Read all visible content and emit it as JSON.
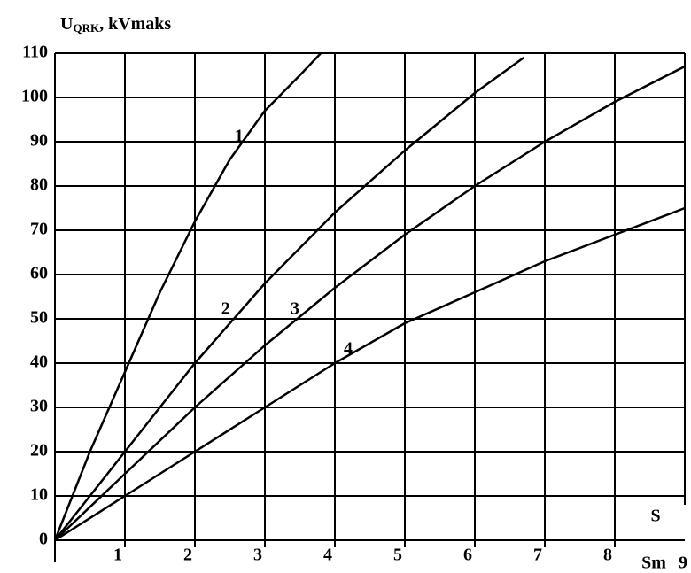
{
  "chart_data": {
    "type": "line",
    "ylabel": {
      "main": "U",
      "sub": "QRK",
      "rest": ", kVmaks"
    },
    "xlabel": "S",
    "xunit": "Sm",
    "xlim": [
      0,
      9
    ],
    "xticks": [
      1,
      2,
      3,
      4,
      5,
      6,
      7,
      8,
      9
    ],
    "ylim": [
      0,
      110
    ],
    "yticks": [
      0,
      10,
      20,
      30,
      40,
      50,
      60,
      70,
      80,
      90,
      100,
      110
    ],
    "grid": true,
    "color": "#000000",
    "series": [
      {
        "name": "1",
        "x": [
          0,
          0.5,
          1,
          1.5,
          2,
          2.5,
          3,
          3.5,
          3.8
        ],
        "values": [
          0,
          20,
          38,
          56,
          72,
          86,
          97,
          105,
          110
        ]
      },
      {
        "name": "2",
        "x": [
          0,
          1,
          2,
          3,
          4,
          5,
          6,
          6.7
        ],
        "values": [
          0,
          20,
          40,
          58,
          74,
          88,
          101,
          109
        ]
      },
      {
        "name": "3",
        "x": [
          0,
          1,
          2,
          3,
          4,
          5,
          6,
          7,
          8,
          9
        ],
        "values": [
          0,
          15,
          30,
          44,
          57,
          69,
          80,
          90,
          99,
          107
        ]
      },
      {
        "name": "4",
        "x": [
          0,
          1,
          2,
          3,
          4,
          5,
          6,
          7,
          8,
          9
        ],
        "values": [
          0,
          10,
          20,
          30,
          40,
          49,
          56,
          63,
          69,
          75
        ]
      }
    ]
  }
}
